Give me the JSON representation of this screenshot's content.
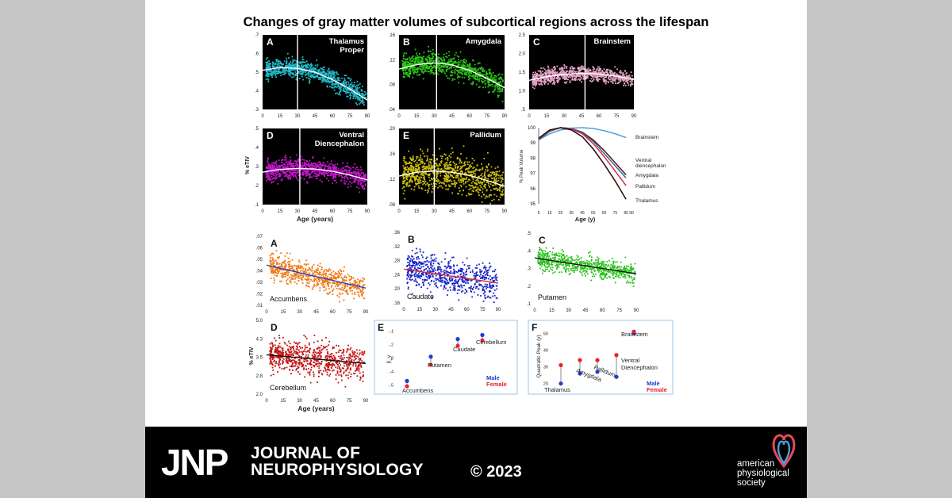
{
  "figure_title": "Changes of gray matter volumes of subcortical regions across the lifespan",
  "journal": {
    "abbrev": "JNP",
    "name_line1": "JOURNAL OF",
    "name_line2": "NEUROPHYSIOLOGY",
    "copyright": "© 2023",
    "publisher_line1": "american",
    "publisher_line2": "physiological",
    "publisher_line3": "society",
    "logo_icon": "aps-logo-icon"
  },
  "colors": {
    "background": "#c6c6c6",
    "slide": "#ffffff",
    "banner": "#000000",
    "male": "#1f3bd6",
    "female": "#e8202a"
  },
  "chart_data": [
    {
      "type": "scatter",
      "panel": "A",
      "label": "Thalamus Proper",
      "color": "#22b8c8",
      "ylim": [
        0.3,
        0.7
      ],
      "yticks": [
        ".7",
        ".6",
        ".5",
        ".4",
        ".3"
      ],
      "xticks": [
        "0",
        "15",
        "30",
        "45",
        "60",
        "75",
        "90"
      ],
      "peak_age": 30,
      "curve": {
        "x": [
          0,
          15,
          30,
          45,
          60,
          75,
          90
        ],
        "y": [
          0.51,
          0.525,
          0.52,
          0.5,
          0.46,
          0.41,
          0.35
        ]
      }
    },
    {
      "type": "scatter",
      "panel": "B",
      "label": "Amygdala",
      "color": "#2bc419",
      "ylim": [
        0.04,
        0.16
      ],
      "yticks": [
        ".16",
        ".12",
        ".08",
        ".04"
      ],
      "xticks": [
        "0",
        "15",
        "30",
        "45",
        "60",
        "75",
        "90"
      ],
      "peak_age": 32,
      "curve": {
        "x": [
          0,
          15,
          30,
          45,
          60,
          75,
          90
        ],
        "y": [
          0.105,
          0.112,
          0.115,
          0.112,
          0.103,
          0.09,
          0.075
        ]
      }
    },
    {
      "type": "scatter",
      "panel": "C",
      "label": "Brainstem",
      "color": "#e5a4c4",
      "ylim": [
        0.5,
        2.5
      ],
      "yticks": [
        "2.5",
        "2.0",
        "1.5",
        "1.0",
        ".5"
      ],
      "xticks": [
        "0",
        "15",
        "30",
        "45",
        "60",
        "75",
        "90"
      ],
      "peak_age": 48,
      "curve": {
        "x": [
          0,
          15,
          30,
          45,
          60,
          75,
          90
        ],
        "y": [
          1.28,
          1.38,
          1.44,
          1.47,
          1.45,
          1.39,
          1.3
        ]
      }
    },
    {
      "type": "scatter",
      "panel": "D",
      "label": "Ventral Diencephalon",
      "color": "#c217c8",
      "ylim": [
        0.1,
        0.5
      ],
      "yticks": [
        ".5",
        ".4",
        ".3",
        ".2",
        ".1"
      ],
      "xticks": [
        "0",
        "15",
        "30",
        "45",
        "60",
        "75",
        "90"
      ],
      "ylabel": "% eTIV",
      "xlabel": "Age (years)",
      "peak_age": 32,
      "curve": {
        "x": [
          0,
          15,
          30,
          45,
          60,
          75,
          90
        ],
        "y": [
          0.27,
          0.285,
          0.29,
          0.287,
          0.275,
          0.255,
          0.23
        ]
      }
    },
    {
      "type": "scatter",
      "panel": "E",
      "label": "Pallidum",
      "color": "#cdbf10",
      "ylim": [
        0.08,
        0.2
      ],
      "yticks": [
        ".20",
        ".16",
        ".12",
        ".08"
      ],
      "xticks": [
        "0",
        "15",
        "30",
        "45",
        "60",
        "75",
        "90"
      ],
      "peak_age": 30,
      "curve": {
        "x": [
          0,
          15,
          30,
          45,
          60,
          75,
          90
        ],
        "y": [
          0.125,
          0.131,
          0.133,
          0.131,
          0.126,
          0.118,
          0.109
        ]
      }
    },
    {
      "type": "line",
      "panel": "F",
      "ylabel": "% Peak Volume",
      "xlabel": "Age (y)",
      "ylim": [
        95,
        100
      ],
      "xticks": [
        "5",
        "15",
        "25",
        "35",
        "45",
        "55",
        "65",
        "75",
        "85",
        "90"
      ],
      "yticks": [
        "100",
        "99",
        "98",
        "97",
        "96",
        "95"
      ],
      "series": [
        {
          "name": "Brainstem",
          "color": "#4aa3d8",
          "x": [
            5,
            15,
            25,
            35,
            45,
            55,
            65,
            75,
            85
          ],
          "y": [
            99.2,
            99.6,
            99.85,
            99.97,
            100,
            99.95,
            99.8,
            99.6,
            99.35
          ]
        },
        {
          "name": "Ventral diencephalon",
          "color": "#5a1016",
          "x": [
            5,
            15,
            25,
            35,
            45,
            55,
            65,
            75,
            85
          ],
          "y": [
            99.3,
            99.8,
            100,
            99.95,
            99.7,
            99.2,
            98.5,
            97.7,
            96.9
          ]
        },
        {
          "name": "Amygdala",
          "color": "#2d6f9c",
          "x": [
            5,
            15,
            25,
            35,
            45,
            55,
            65,
            75,
            85
          ],
          "y": [
            99.2,
            99.75,
            100,
            99.95,
            99.65,
            99.1,
            98.3,
            97.5,
            96.7
          ]
        },
        {
          "name": "Pallidum",
          "color": "#d23048",
          "x": [
            5,
            15,
            25,
            35,
            45,
            55,
            65,
            75,
            85
          ],
          "y": [
            99.3,
            99.8,
            100,
            99.9,
            99.6,
            98.95,
            98.1,
            97.15,
            96.2
          ]
        },
        {
          "name": "Thalamus",
          "color": "#2a0808",
          "x": [
            5,
            15,
            25,
            35,
            45,
            55,
            65,
            75,
            85
          ],
          "y": [
            99.3,
            99.85,
            100,
            99.85,
            99.4,
            98.6,
            97.6,
            96.5,
            95.3
          ]
        }
      ]
    },
    {
      "type": "scatter",
      "panel": "A",
      "label": "Accumbens",
      "color": "#f07812",
      "trend_color": "#2a39c8",
      "ylim": [
        0.01,
        0.07
      ],
      "yticks": [
        ".07",
        ".06",
        ".05",
        ".04",
        ".03",
        ".02",
        ".01"
      ],
      "xticks": [
        "0",
        "15",
        "30",
        "45",
        "60",
        "75",
        "90"
      ],
      "trend": {
        "x": [
          0,
          90
        ],
        "y": [
          0.045,
          0.025
        ]
      }
    },
    {
      "type": "scatter",
      "panel": "B",
      "label": "Caudate",
      "color": "#1420c8",
      "trend_color": "#e02828",
      "ylim": [
        0.16,
        0.36
      ],
      "yticks": [
        ".36",
        ".32",
        ".28",
        ".24",
        ".20",
        ".16"
      ],
      "xticks": [
        "0",
        "15",
        "30",
        "45",
        "60",
        "75",
        "90"
      ],
      "trend": {
        "x": [
          0,
          90
        ],
        "y": [
          0.256,
          0.216
        ]
      }
    },
    {
      "type": "scatter",
      "panel": "C",
      "label": "Putamen",
      "color": "#26c21a",
      "trend_color": "#111111",
      "ylim": [
        0.1,
        0.5
      ],
      "yticks": [
        ".5",
        ".4",
        ".3",
        ".2",
        ".1"
      ],
      "xticks": [
        "0",
        "15",
        "30",
        "45",
        "60",
        "75",
        "90"
      ],
      "trend": {
        "x": [
          0,
          90
        ],
        "y": [
          0.36,
          0.27
        ]
      }
    },
    {
      "type": "scatter",
      "panel": "D",
      "label": "Cerebellum",
      "color": "#c21515",
      "trend_color": "#111111",
      "ylim": [
        2.0,
        5.0
      ],
      "yticks": [
        "5.0",
        "4.3",
        "3.5",
        "2.8",
        "2.0"
      ],
      "xticks": [
        "0",
        "15",
        "30",
        "45",
        "60",
        "75",
        "90"
      ],
      "ylabel": "% eTIV",
      "xlabel": "Age (years)",
      "trend": {
        "x": [
          0,
          90
        ],
        "y": [
          3.6,
          3.25
        ]
      }
    },
    {
      "type": "scatter",
      "panel": "E",
      "ylabel": "β_y",
      "yticks": [
        "-.1",
        "-.2",
        "-.3",
        "-.4",
        "-.5"
      ],
      "ylim": [
        -0.55,
        -0.08
      ],
      "categories": [
        "Accumbens",
        "Putamen",
        "Caudate",
        "Cerebellum"
      ],
      "series": [
        {
          "name": "Male",
          "values": [
            -0.47,
            -0.29,
            -0.16,
            -0.13
          ]
        },
        {
          "name": "Female",
          "values": [
            -0.51,
            -0.35,
            -0.21,
            -0.17
          ]
        }
      ],
      "legend": [
        "Male",
        "Female"
      ]
    },
    {
      "type": "scatter",
      "panel": "F",
      "ylabel": "Quadratic Peak (y)",
      "yticks": [
        "50",
        "40",
        "30",
        "20"
      ],
      "ylim": [
        17,
        53
      ],
      "categories": [
        "Thalamus",
        "Amygdala",
        "Pallidum",
        "Ventral Diencephalon",
        "Brainstem"
      ],
      "series": [
        {
          "name": "Male",
          "values": [
            20,
            26,
            27,
            24,
            50
          ]
        },
        {
          "name": "Female",
          "values": [
            31,
            34,
            34,
            37,
            51
          ]
        }
      ],
      "legend": [
        "Male",
        "Female"
      ]
    }
  ]
}
